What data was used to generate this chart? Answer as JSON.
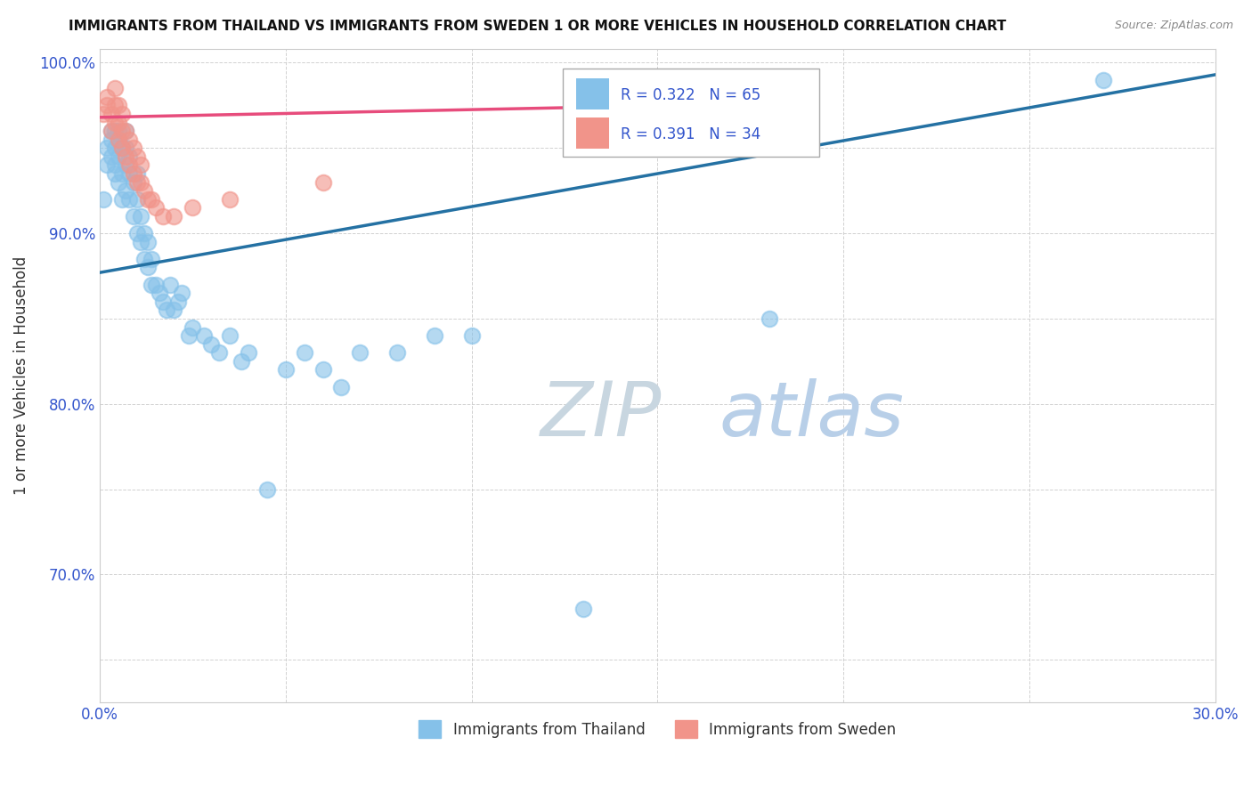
{
  "title": "IMMIGRANTS FROM THAILAND VS IMMIGRANTS FROM SWEDEN 1 OR MORE VEHICLES IN HOUSEHOLD CORRELATION CHART",
  "source": "Source: ZipAtlas.com",
  "ylabel": "1 or more Vehicles in Household",
  "legend_labels": [
    "Immigrants from Thailand",
    "Immigrants from Sweden"
  ],
  "xlim": [
    0.0,
    0.3
  ],
  "ylim": [
    0.625,
    1.008
  ],
  "xticks": [
    0.0,
    0.05,
    0.1,
    0.15,
    0.2,
    0.25,
    0.3
  ],
  "xtick_labels": [
    "0.0%",
    "",
    "",
    "",
    "",
    "",
    "30.0%"
  ],
  "yticks": [
    0.65,
    0.7,
    0.75,
    0.8,
    0.85,
    0.9,
    0.95,
    1.0
  ],
  "ytick_labels": [
    "",
    "70.0%",
    "",
    "80.0%",
    "",
    "90.0%",
    "",
    "100.0%"
  ],
  "R_thailand": 0.322,
  "N_thailand": 65,
  "R_sweden": 0.391,
  "N_sweden": 34,
  "color_thailand": "#85c1e9",
  "color_sweden": "#f1948a",
  "line_color_thailand": "#2471a3",
  "line_color_sweden": "#e74c7c",
  "watermark_zip_color": "#c8d6e0",
  "watermark_atlas_color": "#b8cfe8",
  "thailand_x": [
    0.001,
    0.002,
    0.002,
    0.003,
    0.003,
    0.003,
    0.004,
    0.004,
    0.004,
    0.004,
    0.005,
    0.005,
    0.005,
    0.005,
    0.006,
    0.006,
    0.006,
    0.007,
    0.007,
    0.007,
    0.007,
    0.008,
    0.008,
    0.008,
    0.009,
    0.009,
    0.01,
    0.01,
    0.01,
    0.011,
    0.011,
    0.012,
    0.012,
    0.013,
    0.013,
    0.014,
    0.014,
    0.015,
    0.016,
    0.017,
    0.018,
    0.019,
    0.02,
    0.021,
    0.022,
    0.024,
    0.025,
    0.028,
    0.03,
    0.032,
    0.035,
    0.038,
    0.04,
    0.045,
    0.05,
    0.055,
    0.06,
    0.065,
    0.07,
    0.08,
    0.09,
    0.1,
    0.13,
    0.18,
    0.27
  ],
  "thailand_y": [
    0.92,
    0.95,
    0.94,
    0.955,
    0.945,
    0.96,
    0.935,
    0.95,
    0.94,
    0.96,
    0.93,
    0.945,
    0.955,
    0.96,
    0.92,
    0.935,
    0.95,
    0.925,
    0.94,
    0.95,
    0.96,
    0.92,
    0.935,
    0.945,
    0.91,
    0.93,
    0.9,
    0.92,
    0.935,
    0.895,
    0.91,
    0.885,
    0.9,
    0.88,
    0.895,
    0.87,
    0.885,
    0.87,
    0.865,
    0.86,
    0.855,
    0.87,
    0.855,
    0.86,
    0.865,
    0.84,
    0.845,
    0.84,
    0.835,
    0.83,
    0.84,
    0.825,
    0.83,
    0.75,
    0.82,
    0.83,
    0.82,
    0.81,
    0.83,
    0.83,
    0.84,
    0.84,
    0.68,
    0.85,
    0.99
  ],
  "sweden_x": [
    0.001,
    0.002,
    0.002,
    0.003,
    0.003,
    0.004,
    0.004,
    0.004,
    0.005,
    0.005,
    0.005,
    0.006,
    0.006,
    0.006,
    0.007,
    0.007,
    0.008,
    0.008,
    0.009,
    0.009,
    0.01,
    0.01,
    0.011,
    0.011,
    0.012,
    0.013,
    0.014,
    0.015,
    0.017,
    0.02,
    0.025,
    0.035,
    0.06,
    0.155
  ],
  "sweden_y": [
    0.97,
    0.975,
    0.98,
    0.96,
    0.97,
    0.965,
    0.975,
    0.985,
    0.955,
    0.965,
    0.975,
    0.95,
    0.96,
    0.97,
    0.945,
    0.96,
    0.94,
    0.955,
    0.935,
    0.95,
    0.93,
    0.945,
    0.93,
    0.94,
    0.925,
    0.92,
    0.92,
    0.915,
    0.91,
    0.91,
    0.915,
    0.92,
    0.93,
    0.975
  ],
  "line_thailand_x0": 0.0,
  "line_thailand_x1": 0.3,
  "line_thailand_y0": 0.877,
  "line_thailand_y1": 0.993,
  "line_sweden_x0": 0.0,
  "line_sweden_x1": 0.155,
  "line_sweden_y0": 0.968,
  "line_sweden_y1": 0.975
}
